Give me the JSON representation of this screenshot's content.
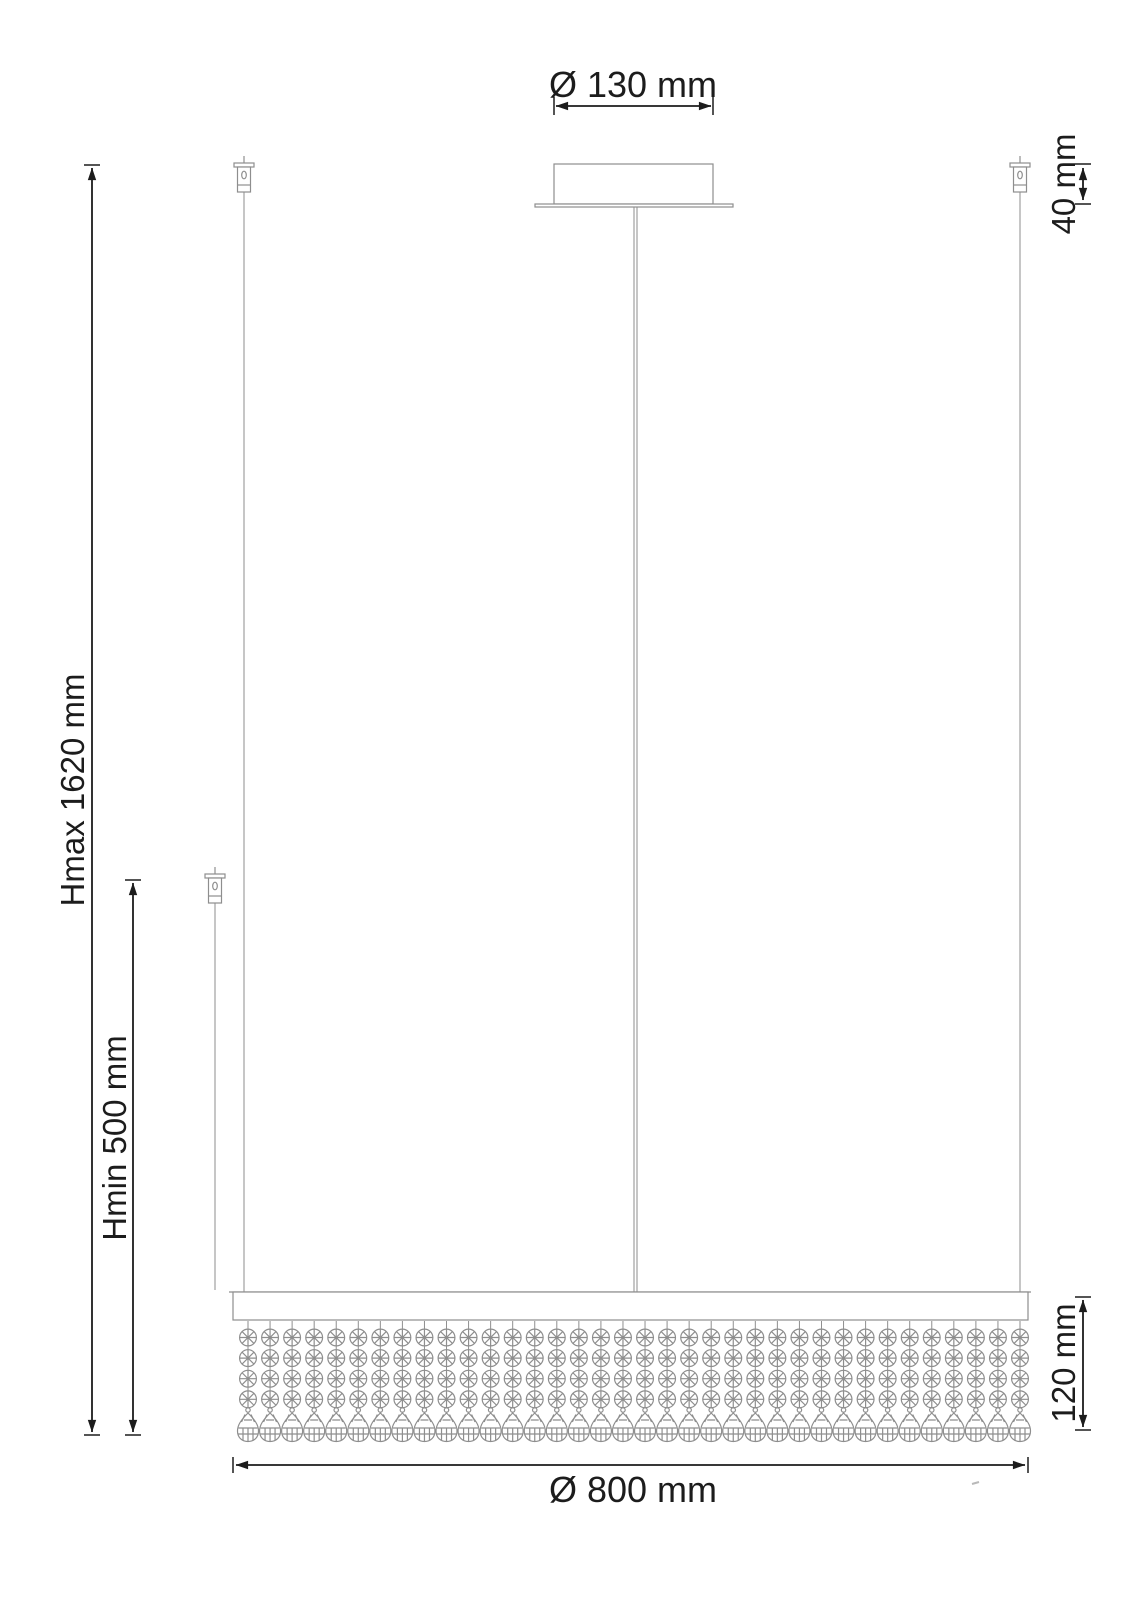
{
  "dimensions": {
    "canopy_diameter": "Ø 130 mm",
    "canopy_height": "40 mm",
    "max_height": "Hmax 1620 mm",
    "min_height": "Hmin 500 mm",
    "crystal_curtain_height": "120 mm",
    "fixture_diameter": "Ø 800 mm"
  },
  "fixture": {
    "strand_count": 36,
    "octagon_rows_per_strand": 4,
    "teardrop_rows_per_strand": 1
  },
  "colors": {
    "dimension_ink": "#1c1c1c",
    "drawing_line": "#8e8e8e",
    "background": "#ffffff"
  }
}
